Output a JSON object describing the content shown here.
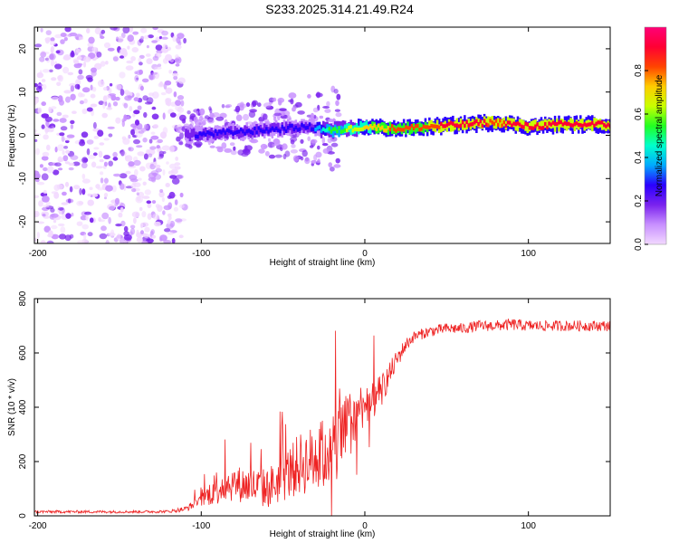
{
  "title": "S233.2025.314.21.49.R24",
  "colors": {
    "snr_line": "#ee2222",
    "axis": "#000000",
    "colormap": [
      "#f2d9ff",
      "#c890ff",
      "#7a22ee",
      "#2a00ff",
      "#00aaff",
      "#00ffcc",
      "#22ff22",
      "#c8ff00",
      "#ffcc00",
      "#ff4400",
      "#ff0033",
      "#ff0077"
    ]
  },
  "chart_data": [
    {
      "type": "heatmap",
      "title": "",
      "xlabel": "Height of straight line (km)",
      "ylabel": "Frequency (Hz)",
      "xlim": [
        -202,
        150
      ],
      "ylim": [
        -25,
        25
      ],
      "xticks": [
        "-200",
        "-100",
        "0",
        "100"
      ],
      "xtick_values": [
        -200,
        -100,
        0,
        100
      ],
      "yticks": [
        "-20",
        "-10",
        "0",
        "10",
        "20"
      ],
      "ytick_values": [
        -20,
        -10,
        0,
        10,
        20
      ],
      "colorbar": {
        "label": "Normalized spectral amplitude",
        "range": [
          0.0,
          1.0
        ],
        "ticks": [
          "0.0",
          "0.2",
          "0.4",
          "0.6",
          "0.8"
        ],
        "tick_values": [
          0.0,
          0.2,
          0.4,
          0.6,
          0.8
        ]
      },
      "ridge": {
        "x": [
          -110,
          -90,
          -70,
          -50,
          -35,
          -20,
          -10,
          0,
          20,
          40,
          60,
          80,
          100,
          120,
          150
        ],
        "frequency": [
          0,
          0.5,
          1,
          1.5,
          2,
          1,
          1.5,
          2,
          1.5,
          2,
          2.5,
          3,
          2,
          2.5,
          2.5
        ],
        "amplitude": [
          0.2,
          0.3,
          0.3,
          0.3,
          0.25,
          0.55,
          0.6,
          0.7,
          0.8,
          0.85,
          0.9,
          0.85,
          0.9,
          0.9,
          0.9
        ]
      },
      "noise_region": {
        "x_from": -202,
        "x_to": -110,
        "amplitude": 0.1
      }
    },
    {
      "type": "line",
      "title": "",
      "xlabel": "Height of straight line (km)",
      "ylabel": "SNR (10 * v/v)",
      "xlim": [
        -202,
        150
      ],
      "ylim": [
        0,
        800
      ],
      "xticks": [
        "-200",
        "-100",
        "0",
        "100"
      ],
      "xtick_values": [
        -200,
        -100,
        0,
        100
      ],
      "yticks": [
        "0",
        "200",
        "400",
        "600",
        "800"
      ],
      "ytick_values": [
        0,
        200,
        400,
        600,
        800
      ],
      "series": [
        {
          "name": "SNR",
          "x": [
            -202,
            -180,
            -160,
            -140,
            -120,
            -110,
            -100,
            -90,
            -80,
            -70,
            -60,
            -50,
            -40,
            -30,
            -20,
            -15,
            -10,
            -5,
            0,
            5,
            10,
            15,
            20,
            25,
            30,
            40,
            50,
            60,
            70,
            80,
            90,
            100,
            110,
            120,
            130,
            140,
            150
          ],
          "y": [
            15,
            15,
            15,
            15,
            16,
            25,
            55,
            110,
            120,
            110,
            100,
            140,
            190,
            210,
            240,
            280,
            330,
            380,
            420,
            420,
            460,
            520,
            580,
            630,
            660,
            680,
            690,
            690,
            700,
            700,
            705,
            700,
            700,
            700,
            700,
            700,
            700
          ],
          "spread": [
            10,
            10,
            10,
            10,
            10,
            20,
            40,
            140,
            130,
            140,
            150,
            180,
            230,
            260,
            280,
            300,
            260,
            200,
            160,
            140,
            120,
            90,
            70,
            50,
            40,
            40,
            40,
            40,
            40,
            40,
            45,
            40,
            40,
            40,
            40,
            40,
            40
          ]
        }
      ]
    }
  ]
}
